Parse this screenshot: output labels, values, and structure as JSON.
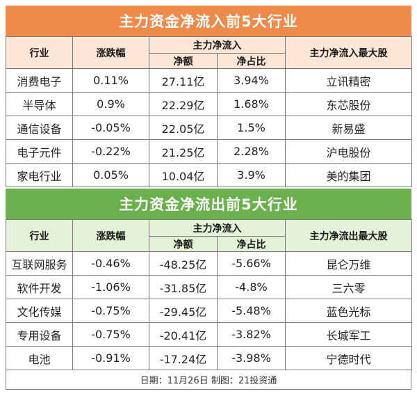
{
  "inflow": {
    "title": "主力资金净流入前5大行业",
    "headers": {
      "industry": "行业",
      "change": "涨跌幅",
      "net_group": "主力净流入",
      "net_amount": "净额",
      "net_ratio": "净占比",
      "top_stock": "主力净流入最大股"
    },
    "rows": [
      {
        "industry": "消费电子",
        "change": "0.11%",
        "amount": "27.11亿",
        "ratio": "3.94%",
        "stock": "立讯精密"
      },
      {
        "industry": "半导体",
        "change": "0.9%",
        "amount": "22.29亿",
        "ratio": "1.68%",
        "stock": "东芯股份"
      },
      {
        "industry": "通信设备",
        "change": "-0.05%",
        "amount": "22.05亿",
        "ratio": "1.5%",
        "stock": "新易盛"
      },
      {
        "industry": "电子元件",
        "change": "-0.22%",
        "amount": "21.25亿",
        "ratio": "2.28%",
        "stock": "沪电股份"
      },
      {
        "industry": "家电行业",
        "change": "0.05%",
        "amount": "10.04亿",
        "ratio": "3.9%",
        "stock": "美的集团"
      }
    ]
  },
  "outflow": {
    "title": "主力资金净流出前5大行业",
    "headers": {
      "industry": "行业",
      "change": "涨跌幅",
      "net_group": "主力净流入",
      "net_amount": "净额",
      "net_ratio": "净占比",
      "top_stock": "主力净流出最大股"
    },
    "rows": [
      {
        "industry": "互联网服务",
        "change": "-0.46%",
        "amount": "-48.25亿",
        "ratio": "-5.66%",
        "stock": "昆仑万维"
      },
      {
        "industry": "软件开发",
        "change": "-1.06%",
        "amount": "-31.85亿",
        "ratio": "-4.8%",
        "stock": "三六零"
      },
      {
        "industry": "文化传媒",
        "change": "-0.75%",
        "amount": "-29.45亿",
        "ratio": "-5.48%",
        "stock": "蓝色光标"
      },
      {
        "industry": "专用设备",
        "change": "-0.75%",
        "amount": "-20.41亿",
        "ratio": "-3.82%",
        "stock": "长城军工"
      },
      {
        "industry": "电池",
        "change": "-0.91%",
        "amount": "-17.24亿",
        "ratio": "-3.98%",
        "stock": "宁德时代"
      }
    ]
  },
  "footer": "日期：11月26日 制图：21投资通",
  "colors": {
    "inflow_banner": "#f08a4b",
    "inflow_header": "#fde6d6",
    "outflow_banner": "#6ab04c",
    "outflow_header": "#e3f1d8"
  }
}
